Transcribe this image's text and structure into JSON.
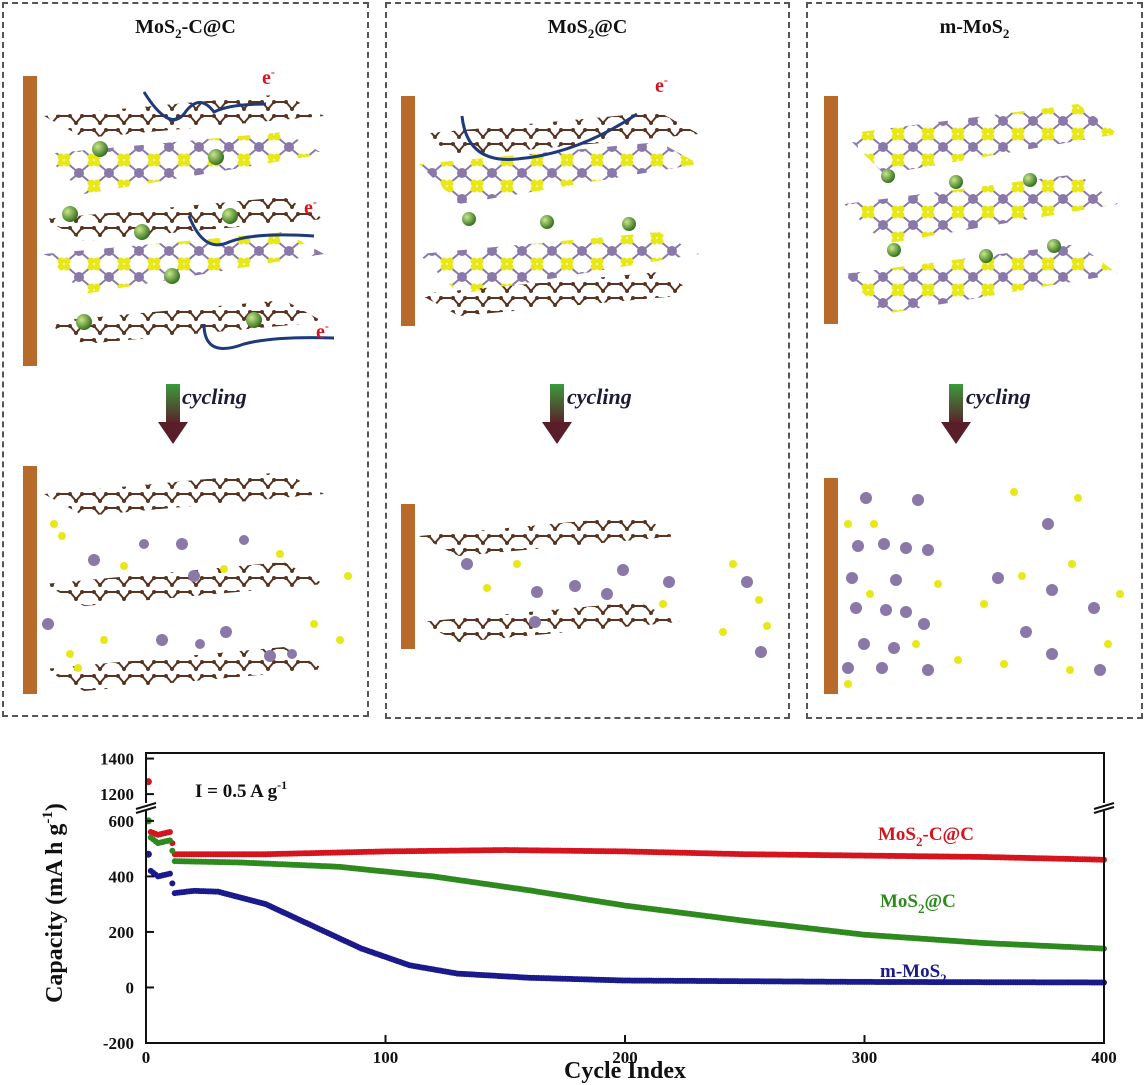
{
  "panels": [
    {
      "id": "mos2-c-at-c",
      "title_main": "MoS",
      "title_sub": "2",
      "title_rest": "-C@C",
      "electron": "e",
      "electron_sup": "-",
      "arrow_label": "cycling"
    },
    {
      "id": "mos2-at-c",
      "title_main": "MoS",
      "title_sub": "2",
      "title_rest": "@C",
      "electron": "e",
      "electron_sup": "-",
      "arrow_label": "cycling"
    },
    {
      "id": "m-mos2",
      "title_main": "m-MoS",
      "title_sub": "2",
      "title_rest": "",
      "electron": "",
      "electron_sup": "",
      "arrow_label": "cycling"
    }
  ],
  "colors": {
    "carbon": "#5a3420",
    "sulfur": "#e8e818",
    "molybdenum": "#8a78a8",
    "ion": "#4e8a2a",
    "collector": "#b86a2a",
    "electron_arrow": "#1f3a7a",
    "red": "#d4141e",
    "green": "#2e8a1e",
    "blue": "#1a1a8c"
  },
  "chart_data": {
    "type": "scatter",
    "annotation_main": "I = 0.5 A g",
    "annotation_sup": "-1",
    "xlabel": "Cycle Index",
    "ylabel_main": "Capacity (mA h g",
    "ylabel_sup": "-1",
    "ylabel_end": ")",
    "xlim": [
      0,
      400
    ],
    "xticks": [
      "0",
      "100",
      "200",
      "300",
      "400"
    ],
    "ylim_lower": [
      -200,
      650
    ],
    "ylim_upper": [
      1150,
      1420
    ],
    "yticks_lower": [
      "-200",
      "0",
      "200",
      "400",
      "600"
    ],
    "yticks_upper": [
      "1200",
      "1400"
    ],
    "axis_break": true,
    "series": [
      {
        "name_main": "MoS",
        "name_sub": "2",
        "name_rest": "-C@C",
        "color": "#d4141e",
        "first_point": {
          "x": 1,
          "y": 1270
        },
        "x": [
          2,
          5,
          10,
          12,
          50,
          100,
          150,
          200,
          250,
          300,
          350,
          400
        ],
        "y": [
          560,
          550,
          560,
          480,
          480,
          490,
          495,
          490,
          480,
          475,
          470,
          460
        ]
      },
      {
        "name_main": "MoS",
        "name_sub": "2",
        "name_rest": "@C",
        "color": "#2e8a1e",
        "first_point": {
          "x": 1,
          "y": 600
        },
        "x": [
          2,
          5,
          10,
          12,
          40,
          80,
          120,
          160,
          200,
          250,
          300,
          350,
          400
        ],
        "y": [
          540,
          520,
          530,
          455,
          450,
          435,
          400,
          350,
          295,
          240,
          190,
          160,
          140
        ]
      },
      {
        "name_main": "m-MoS",
        "name_sub": "2",
        "name_rest": "",
        "color": "#1a1a8c",
        "first_point": {
          "x": 1,
          "y": 480
        },
        "x": [
          2,
          5,
          10,
          12,
          20,
          30,
          50,
          70,
          90,
          110,
          130,
          160,
          200,
          300,
          400
        ],
        "y": [
          420,
          400,
          410,
          340,
          348,
          345,
          300,
          220,
          140,
          80,
          50,
          35,
          25,
          20,
          18
        ]
      }
    ]
  }
}
